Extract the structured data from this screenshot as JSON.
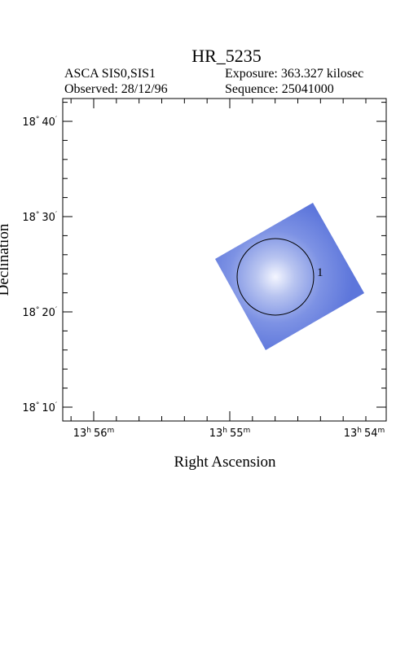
{
  "header": {
    "title": "HR_5235",
    "instrument": "ASCA SIS0,SIS1",
    "exposure": "Exposure: 363.327 kilosec",
    "observed": "Observed: 28/12/96",
    "sequence": "Sequence: 25041000"
  },
  "plot": {
    "x_axis_label": "Right Ascension",
    "y_axis_label": "Declination",
    "x_tick_labels": [
      [
        "13",
        "h",
        "56",
        "m"
      ],
      [
        "13",
        "h",
        "55",
        "m"
      ],
      [
        "13",
        "h",
        "54",
        "m"
      ]
    ],
    "y_tick_labels": [
      [
        "18",
        "°",
        "40",
        "′"
      ],
      [
        "18",
        "°",
        "30",
        "′"
      ],
      [
        "18",
        "°",
        "20",
        "′"
      ],
      [
        "18",
        "°",
        "10",
        "′"
      ]
    ],
    "source_label": "1"
  }
}
